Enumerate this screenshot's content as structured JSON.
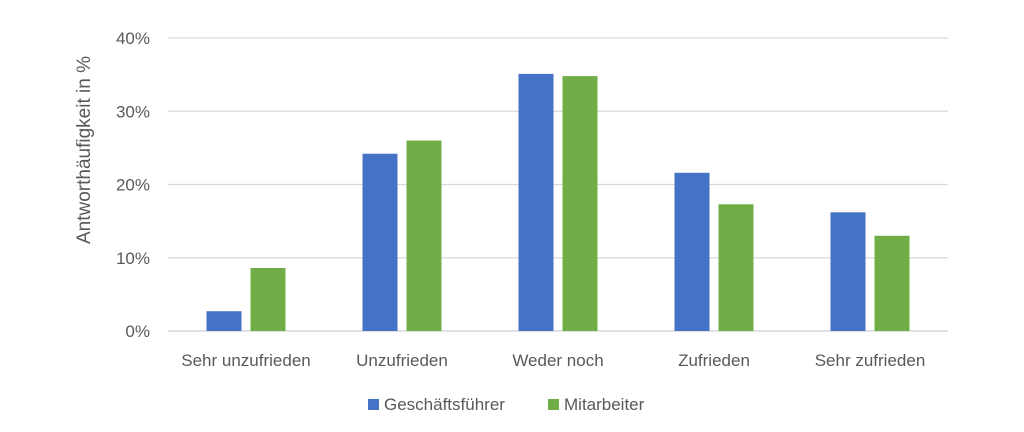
{
  "chart_data": {
    "type": "bar",
    "title": "",
    "xlabel": "",
    "ylabel": "Antworthäufigkeit in %",
    "ylim": [
      0,
      40
    ],
    "yticks": [
      0,
      10,
      20,
      30,
      40
    ],
    "ytick_labels": [
      "0%",
      "10%",
      "20%",
      "30%",
      "40%"
    ],
    "grid": true,
    "legend_position": "bottom",
    "categories": [
      "Sehr unzufrieden",
      "Unzufrieden",
      "Weder noch",
      "Zufrieden",
      "Sehr zufrieden"
    ],
    "series": [
      {
        "name": "Geschäftsführer",
        "color": "#4472c4",
        "values": [
          2.7,
          24.2,
          35.1,
          21.6,
          16.2
        ]
      },
      {
        "name": "Mitarbeiter",
        "color": "#70ad47",
        "values": [
          8.6,
          26.0,
          34.8,
          17.3,
          13.0
        ]
      }
    ]
  }
}
